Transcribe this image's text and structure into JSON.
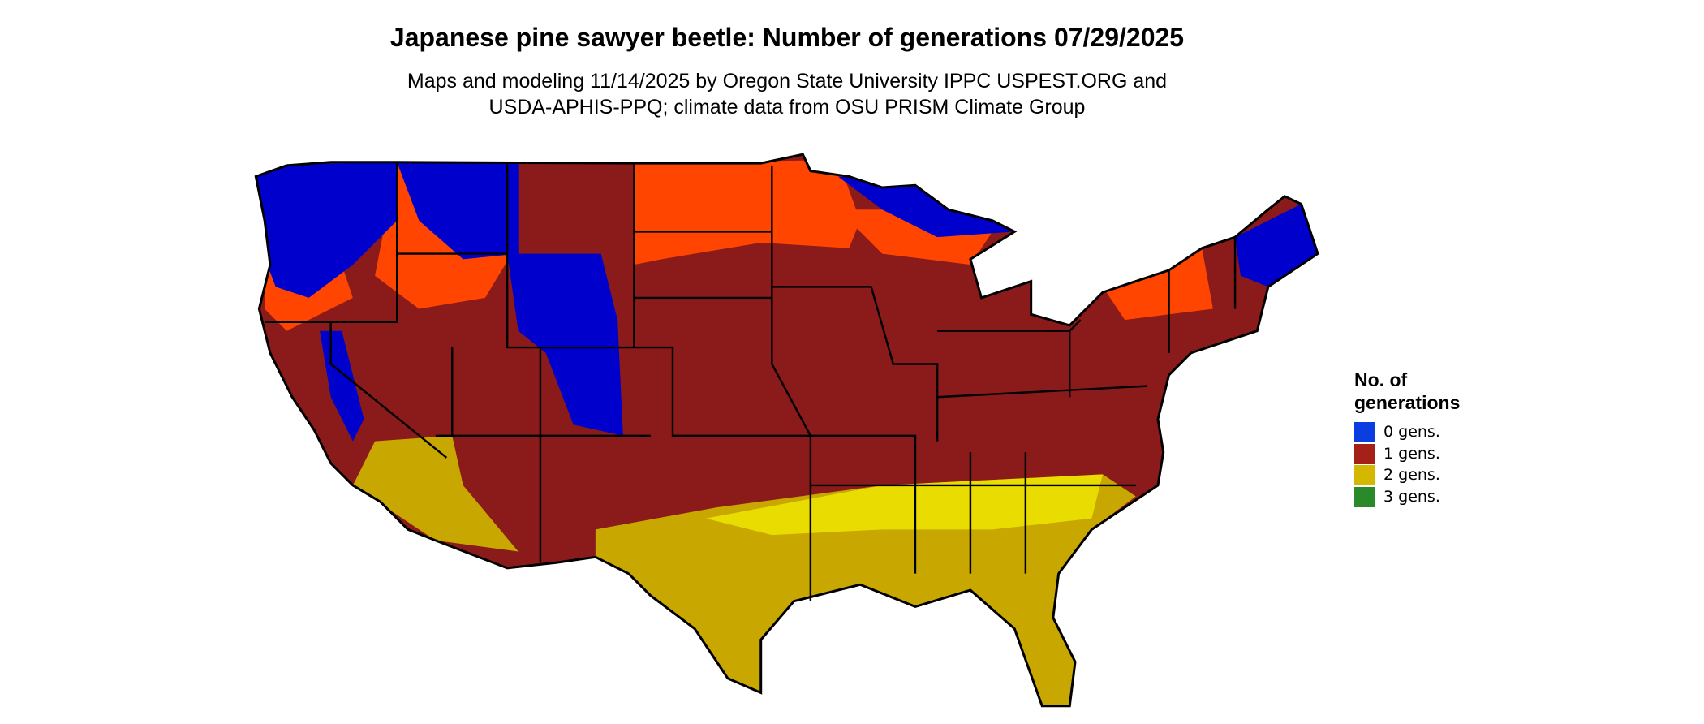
{
  "header": {
    "title": "Japanese pine sawyer beetle: Number of generations 07/29/2025",
    "subtitle": [
      "Maps and modeling 11/14/2025 by Oregon State University IPPC USPEST.ORG and",
      "USDA-APHIS-PPQ; climate data from OSU PRISM Climate Group"
    ]
  },
  "legend": {
    "title": [
      "No. of",
      "generations"
    ],
    "items": [
      {
        "label": "0 gens.",
        "color": "#0a3ee0"
      },
      {
        "label": "1 gens.",
        "color": "#a52016"
      },
      {
        "label": "2 gens.",
        "color": "#d4b800"
      },
      {
        "label": "3 gens.",
        "color": "#2a8a2a"
      }
    ]
  }
}
